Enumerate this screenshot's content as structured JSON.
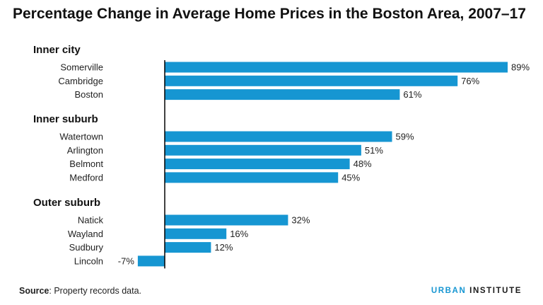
{
  "chart_data": {
    "type": "bar",
    "orientation": "horizontal",
    "title": "Percentage Change in Average Home Prices in the Boston Area, 2007–17",
    "groups": [
      {
        "label": "Inner city",
        "items": [
          {
            "category": "Somerville",
            "value": 89,
            "label": "89%"
          },
          {
            "category": "Cambridge",
            "value": 76,
            "label": "76%"
          },
          {
            "category": "Boston",
            "value": 61,
            "label": "61%"
          }
        ]
      },
      {
        "label": "Inner suburb",
        "items": [
          {
            "category": "Watertown",
            "value": 59,
            "label": "59%"
          },
          {
            "category": "Arlington",
            "value": 51,
            "label": "51%"
          },
          {
            "category": "Belmont",
            "value": 48,
            "label": "48%"
          },
          {
            "category": "Medford",
            "value": 45,
            "label": "45%"
          }
        ]
      },
      {
        "label": "Outer suburb",
        "items": [
          {
            "category": "Natick",
            "value": 32,
            "label": "32%"
          },
          {
            "category": "Wayland",
            "value": 16,
            "label": "16%"
          },
          {
            "category": "Sudbury",
            "value": 12,
            "label": "12%"
          },
          {
            "category": "Lincoln",
            "value": -7,
            "label": "-7%"
          }
        ]
      }
    ],
    "xlim": [
      -7,
      89
    ],
    "grid": false,
    "bar_color": "#1696d2"
  },
  "footer": {
    "source_prefix": "Source",
    "source_text": ": Property records data.",
    "brand_part1": "URBAN",
    "brand_part2": " INSTITUTE"
  },
  "colors": {
    "accent": "#1696d2",
    "axis": "#000000"
  }
}
